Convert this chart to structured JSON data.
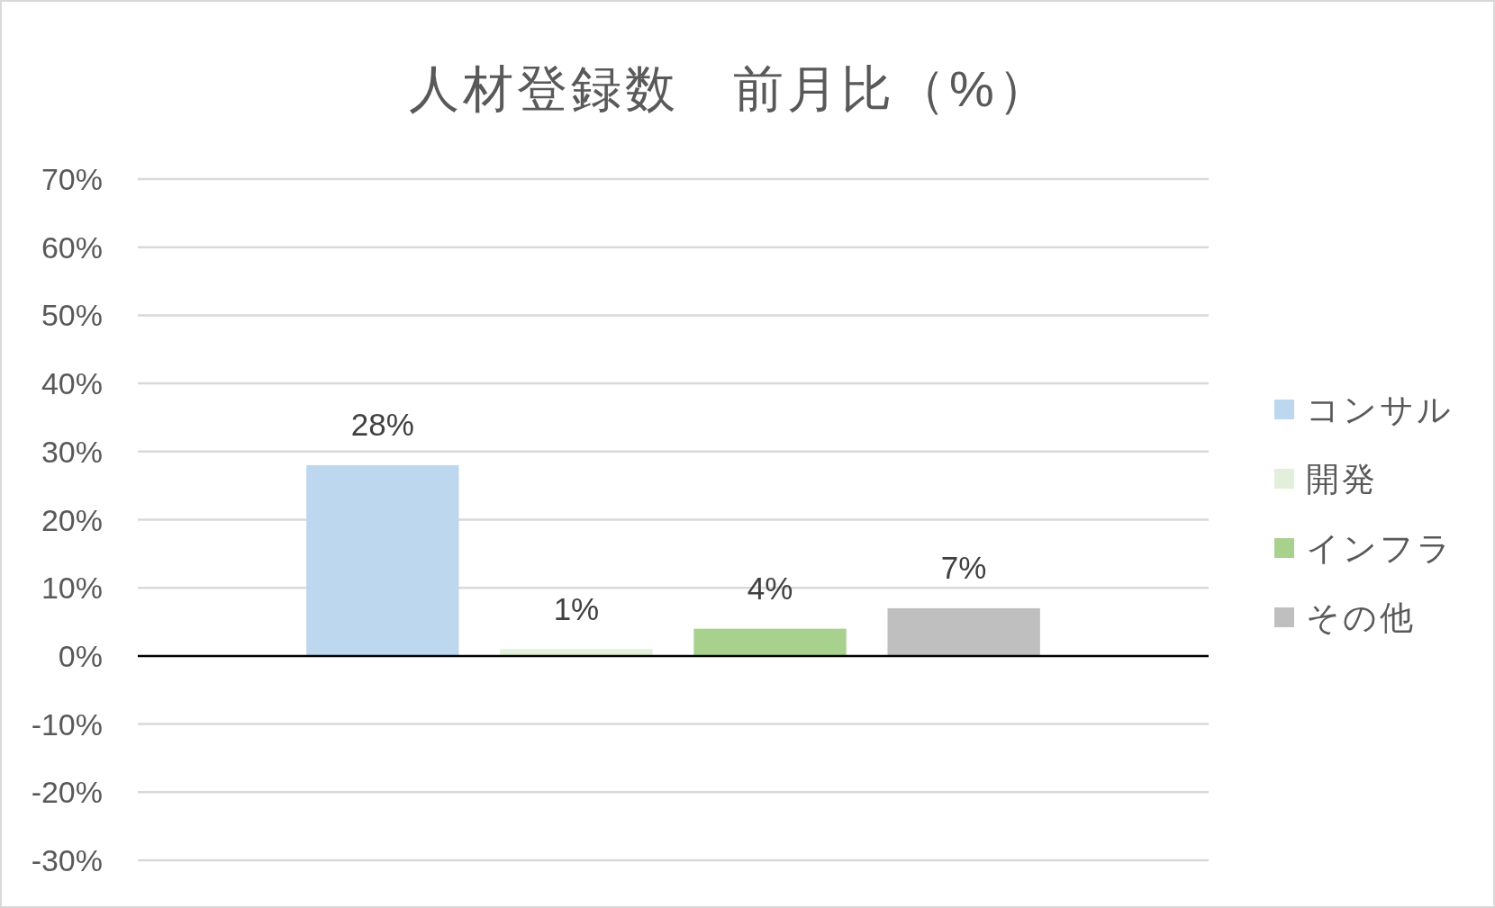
{
  "chart_data": {
    "type": "bar",
    "title": "人材登録数　前月比（%）",
    "categories": [
      null
    ],
    "series": [
      {
        "name": "コンサル",
        "color": "#bdd7ee",
        "values": [
          28
        ],
        "value_labels": [
          "28%"
        ]
      },
      {
        "name": "開発",
        "color": "#e2efda",
        "values": [
          1
        ],
        "value_labels": [
          "1%"
        ]
      },
      {
        "name": "インフラ",
        "color": "#a9d18e",
        "values": [
          4
        ],
        "value_labels": [
          "4%"
        ]
      },
      {
        "name": "その他",
        "color": "#bfbfbf",
        "values": [
          7
        ],
        "value_labels": [
          "7%"
        ]
      }
    ],
    "ylim": [
      -30,
      70
    ],
    "yticks": [
      {
        "value": 70,
        "label": "70%"
      },
      {
        "value": 60,
        "label": "60%"
      },
      {
        "value": 50,
        "label": "50%"
      },
      {
        "value": 40,
        "label": "40%"
      },
      {
        "value": 30,
        "label": "30%"
      },
      {
        "value": 20,
        "label": "20%"
      },
      {
        "value": 10,
        "label": "10%"
      },
      {
        "value": 0,
        "label": "0%"
      },
      {
        "value": -10,
        "label": "-10%"
      },
      {
        "value": -20,
        "label": "-20%"
      },
      {
        "value": -30,
        "label": "-30%"
      }
    ],
    "grid": "y",
    "legend": "right",
    "tick_labels": "y"
  }
}
